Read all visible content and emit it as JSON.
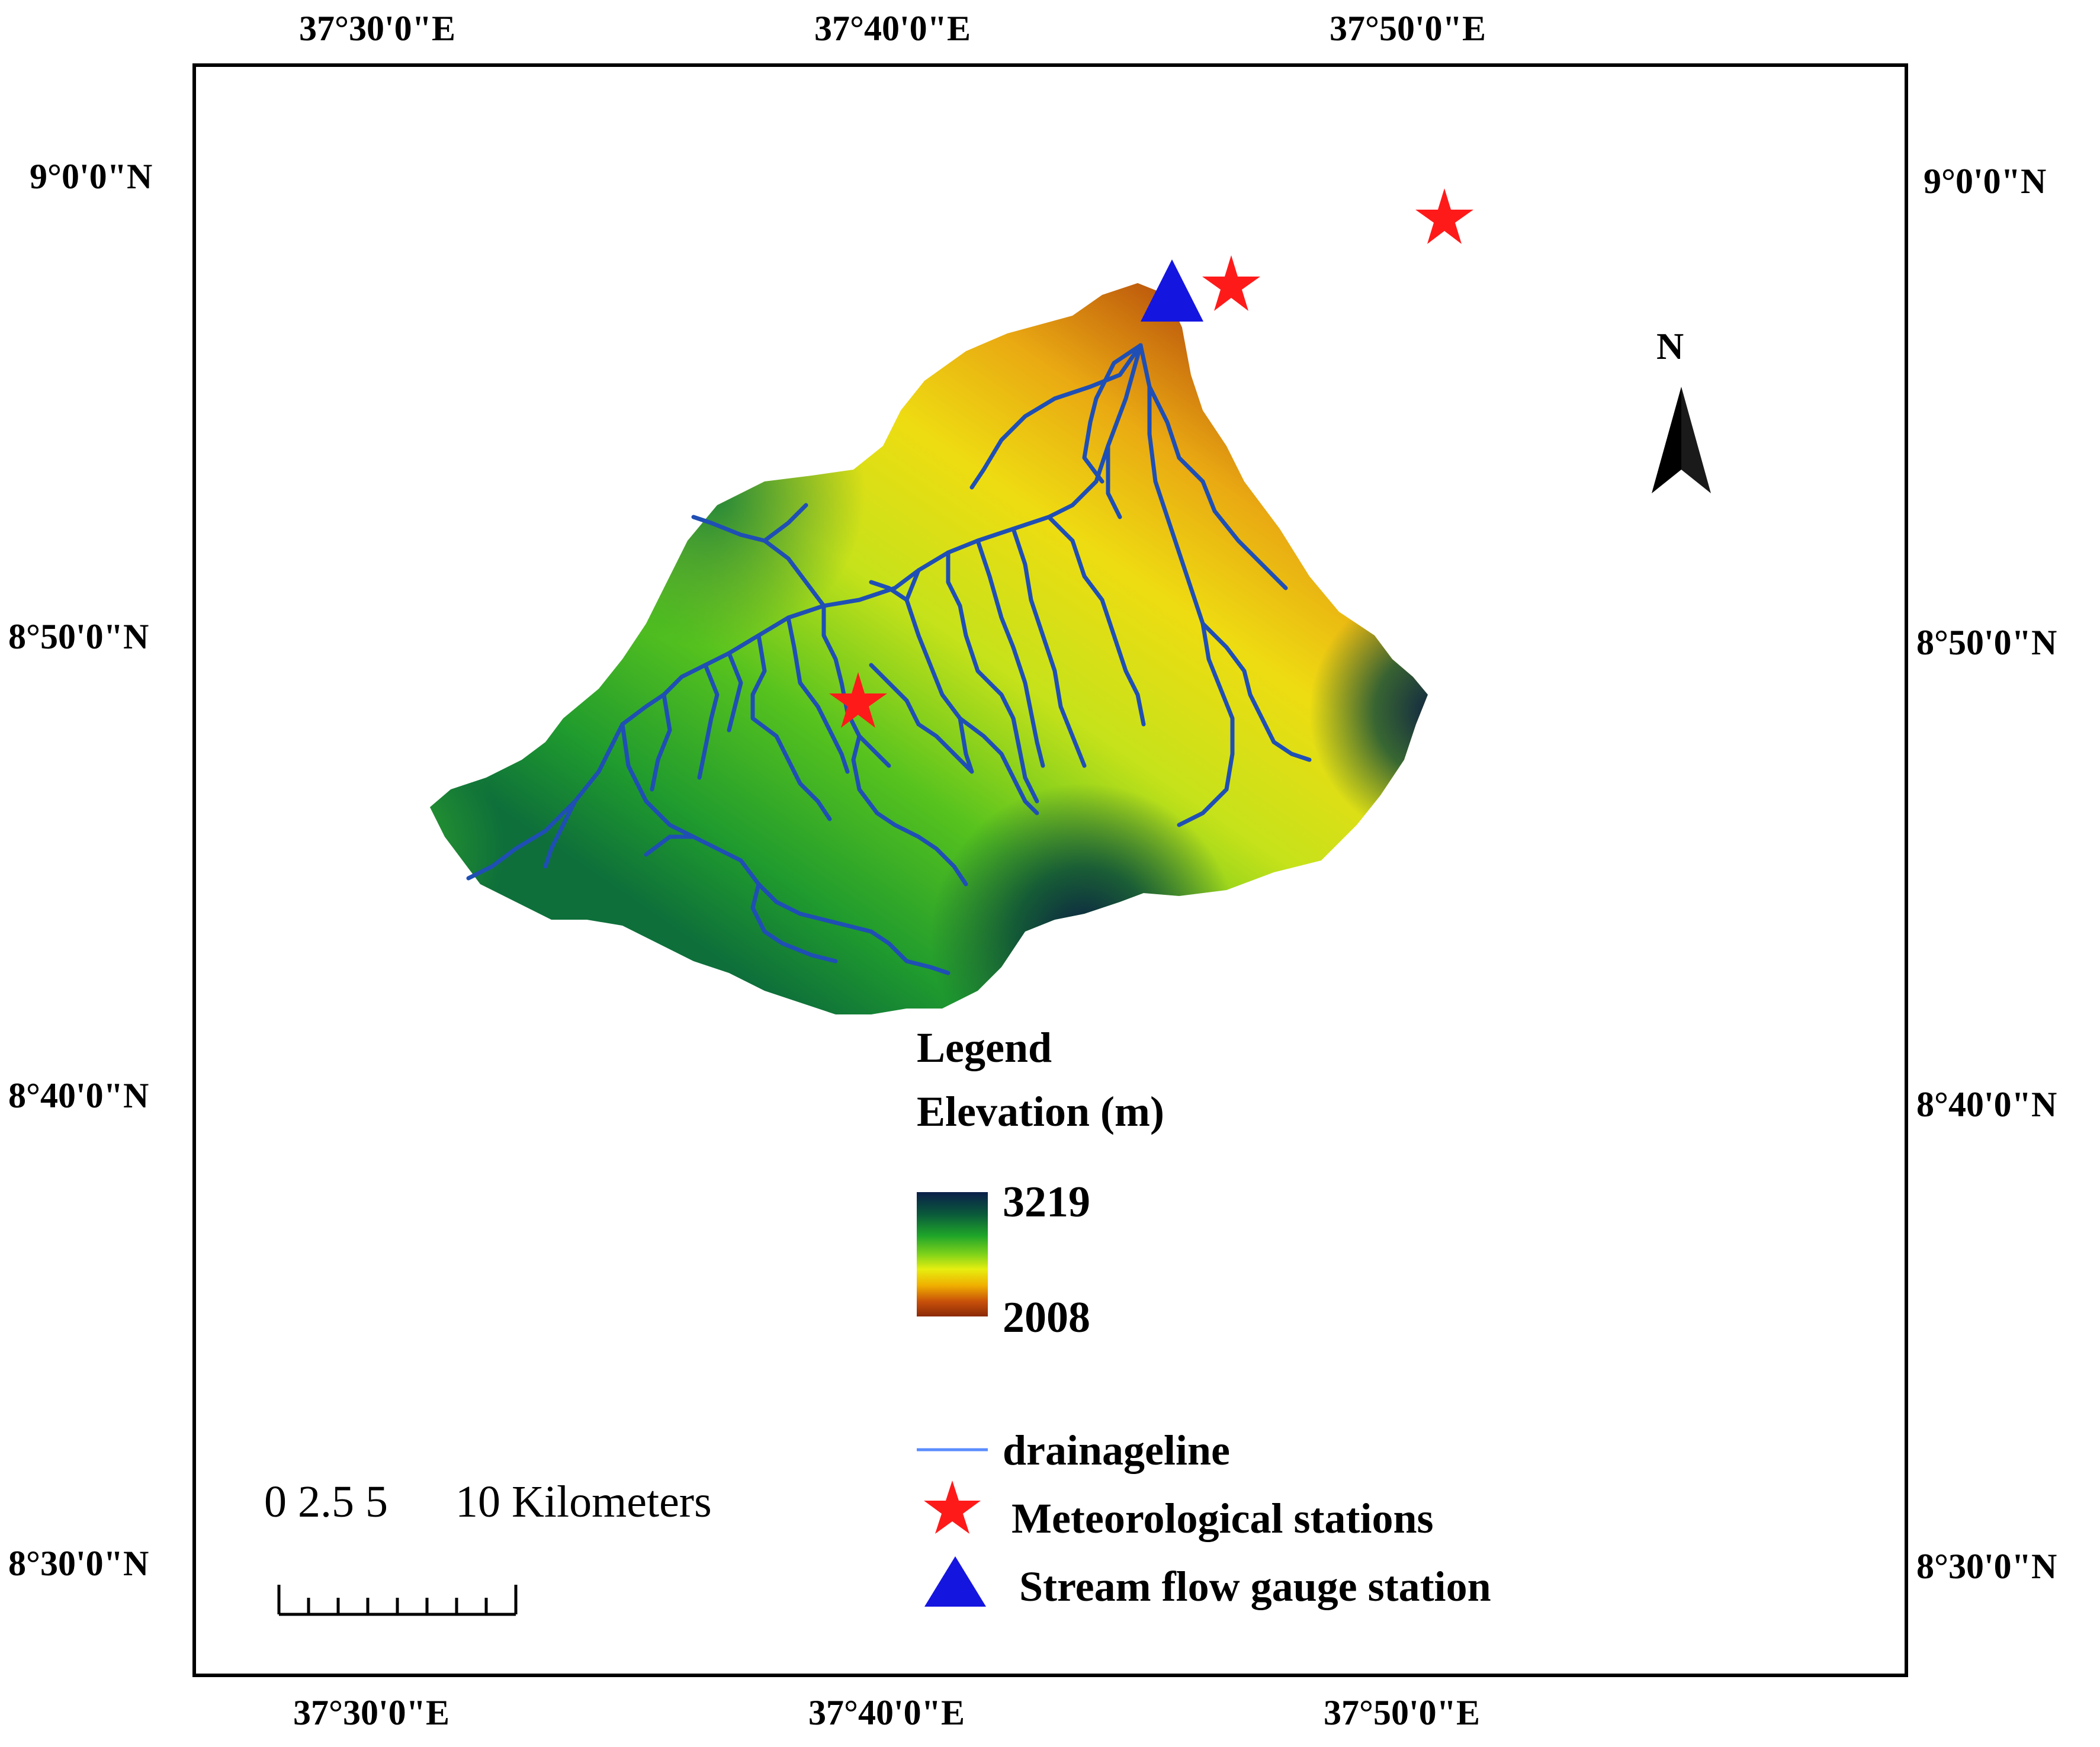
{
  "axes": {
    "top_lon_labels": [
      "37°30'0\"E",
      "37°40'0\"E",
      "37°50'0\"E"
    ],
    "bottom_lon_labels": [
      "37°30'0\"E",
      "37°40'0\"E",
      "37°50'0\"E"
    ],
    "left_lat_labels": [
      "9°0'0\"N",
      "8°50'0\"N",
      "8°40'0\"N",
      "8°30'0\"N"
    ],
    "right_lat_labels": [
      "9°0'0\"N",
      "8°50'0\"N",
      "8°40'0\"N",
      "8°30'0\"N"
    ]
  },
  "north_arrow": {
    "label": "N",
    "icon": "north-arrow-icon"
  },
  "legend": {
    "title": "Legend",
    "elevation_title": "Elevation (m)",
    "elevation_max": "3219",
    "elevation_min": "2008",
    "ramp_colors": [
      "#0b1f4a",
      "#0a5a3a",
      "#1fa52a",
      "#7fd21a",
      "#e6ee10",
      "#f0b000",
      "#c8500a",
      "#8a2a08"
    ],
    "items": [
      {
        "label": "drainageline",
        "symbol": "blue-line",
        "color": "#5a8cff"
      },
      {
        "label": "Meteorological stations",
        "symbol": "star-icon",
        "color": "#ff1a1a"
      },
      {
        "label": "Stream flow gauge station",
        "symbol": "triangle-icon",
        "color": "#1515e0"
      }
    ]
  },
  "scale_bar": {
    "label": "0 2.5 5      10 Kilometers"
  },
  "colors": {
    "river": "#1f4fb4",
    "station": "#ff1a1a",
    "gauge": "#1515e0"
  }
}
